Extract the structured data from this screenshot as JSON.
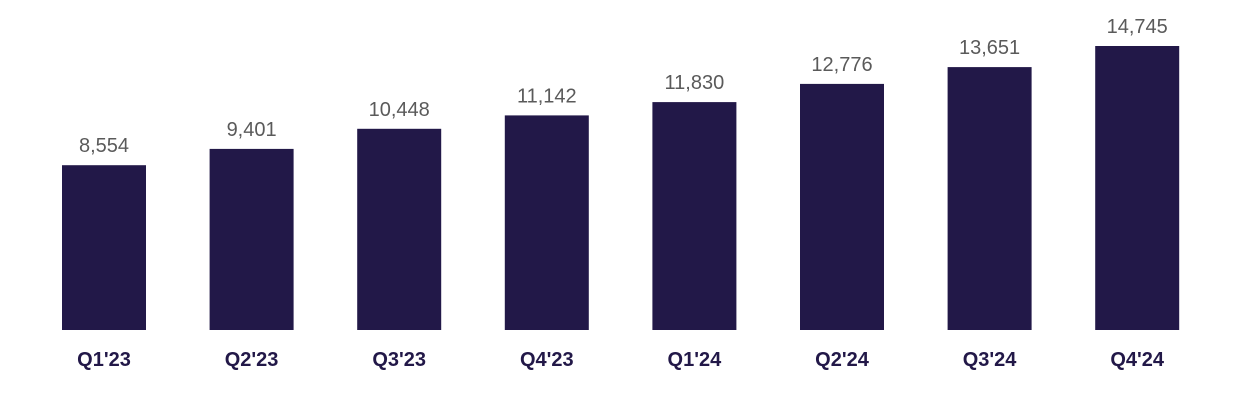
{
  "chart_data": {
    "type": "bar",
    "categories": [
      "Q1'23",
      "Q2'23",
      "Q3'23",
      "Q4'23",
      "Q1'24",
      "Q2'24",
      "Q3'24",
      "Q4'24"
    ],
    "values": [
      8554,
      9401,
      10448,
      11142,
      11830,
      12776,
      13651,
      14745
    ],
    "value_labels": [
      "8,554",
      "9,401",
      "10,448",
      "11,142",
      "11,830",
      "12,776",
      "13,651",
      "14,745"
    ],
    "title": "",
    "xlabel": "",
    "ylabel": "",
    "ylim": [
      0,
      16000
    ],
    "grid": false,
    "legend": "none",
    "bar_color": "#221848",
    "label_color": "#221848",
    "value_label_color": "#5a5a5a"
  }
}
